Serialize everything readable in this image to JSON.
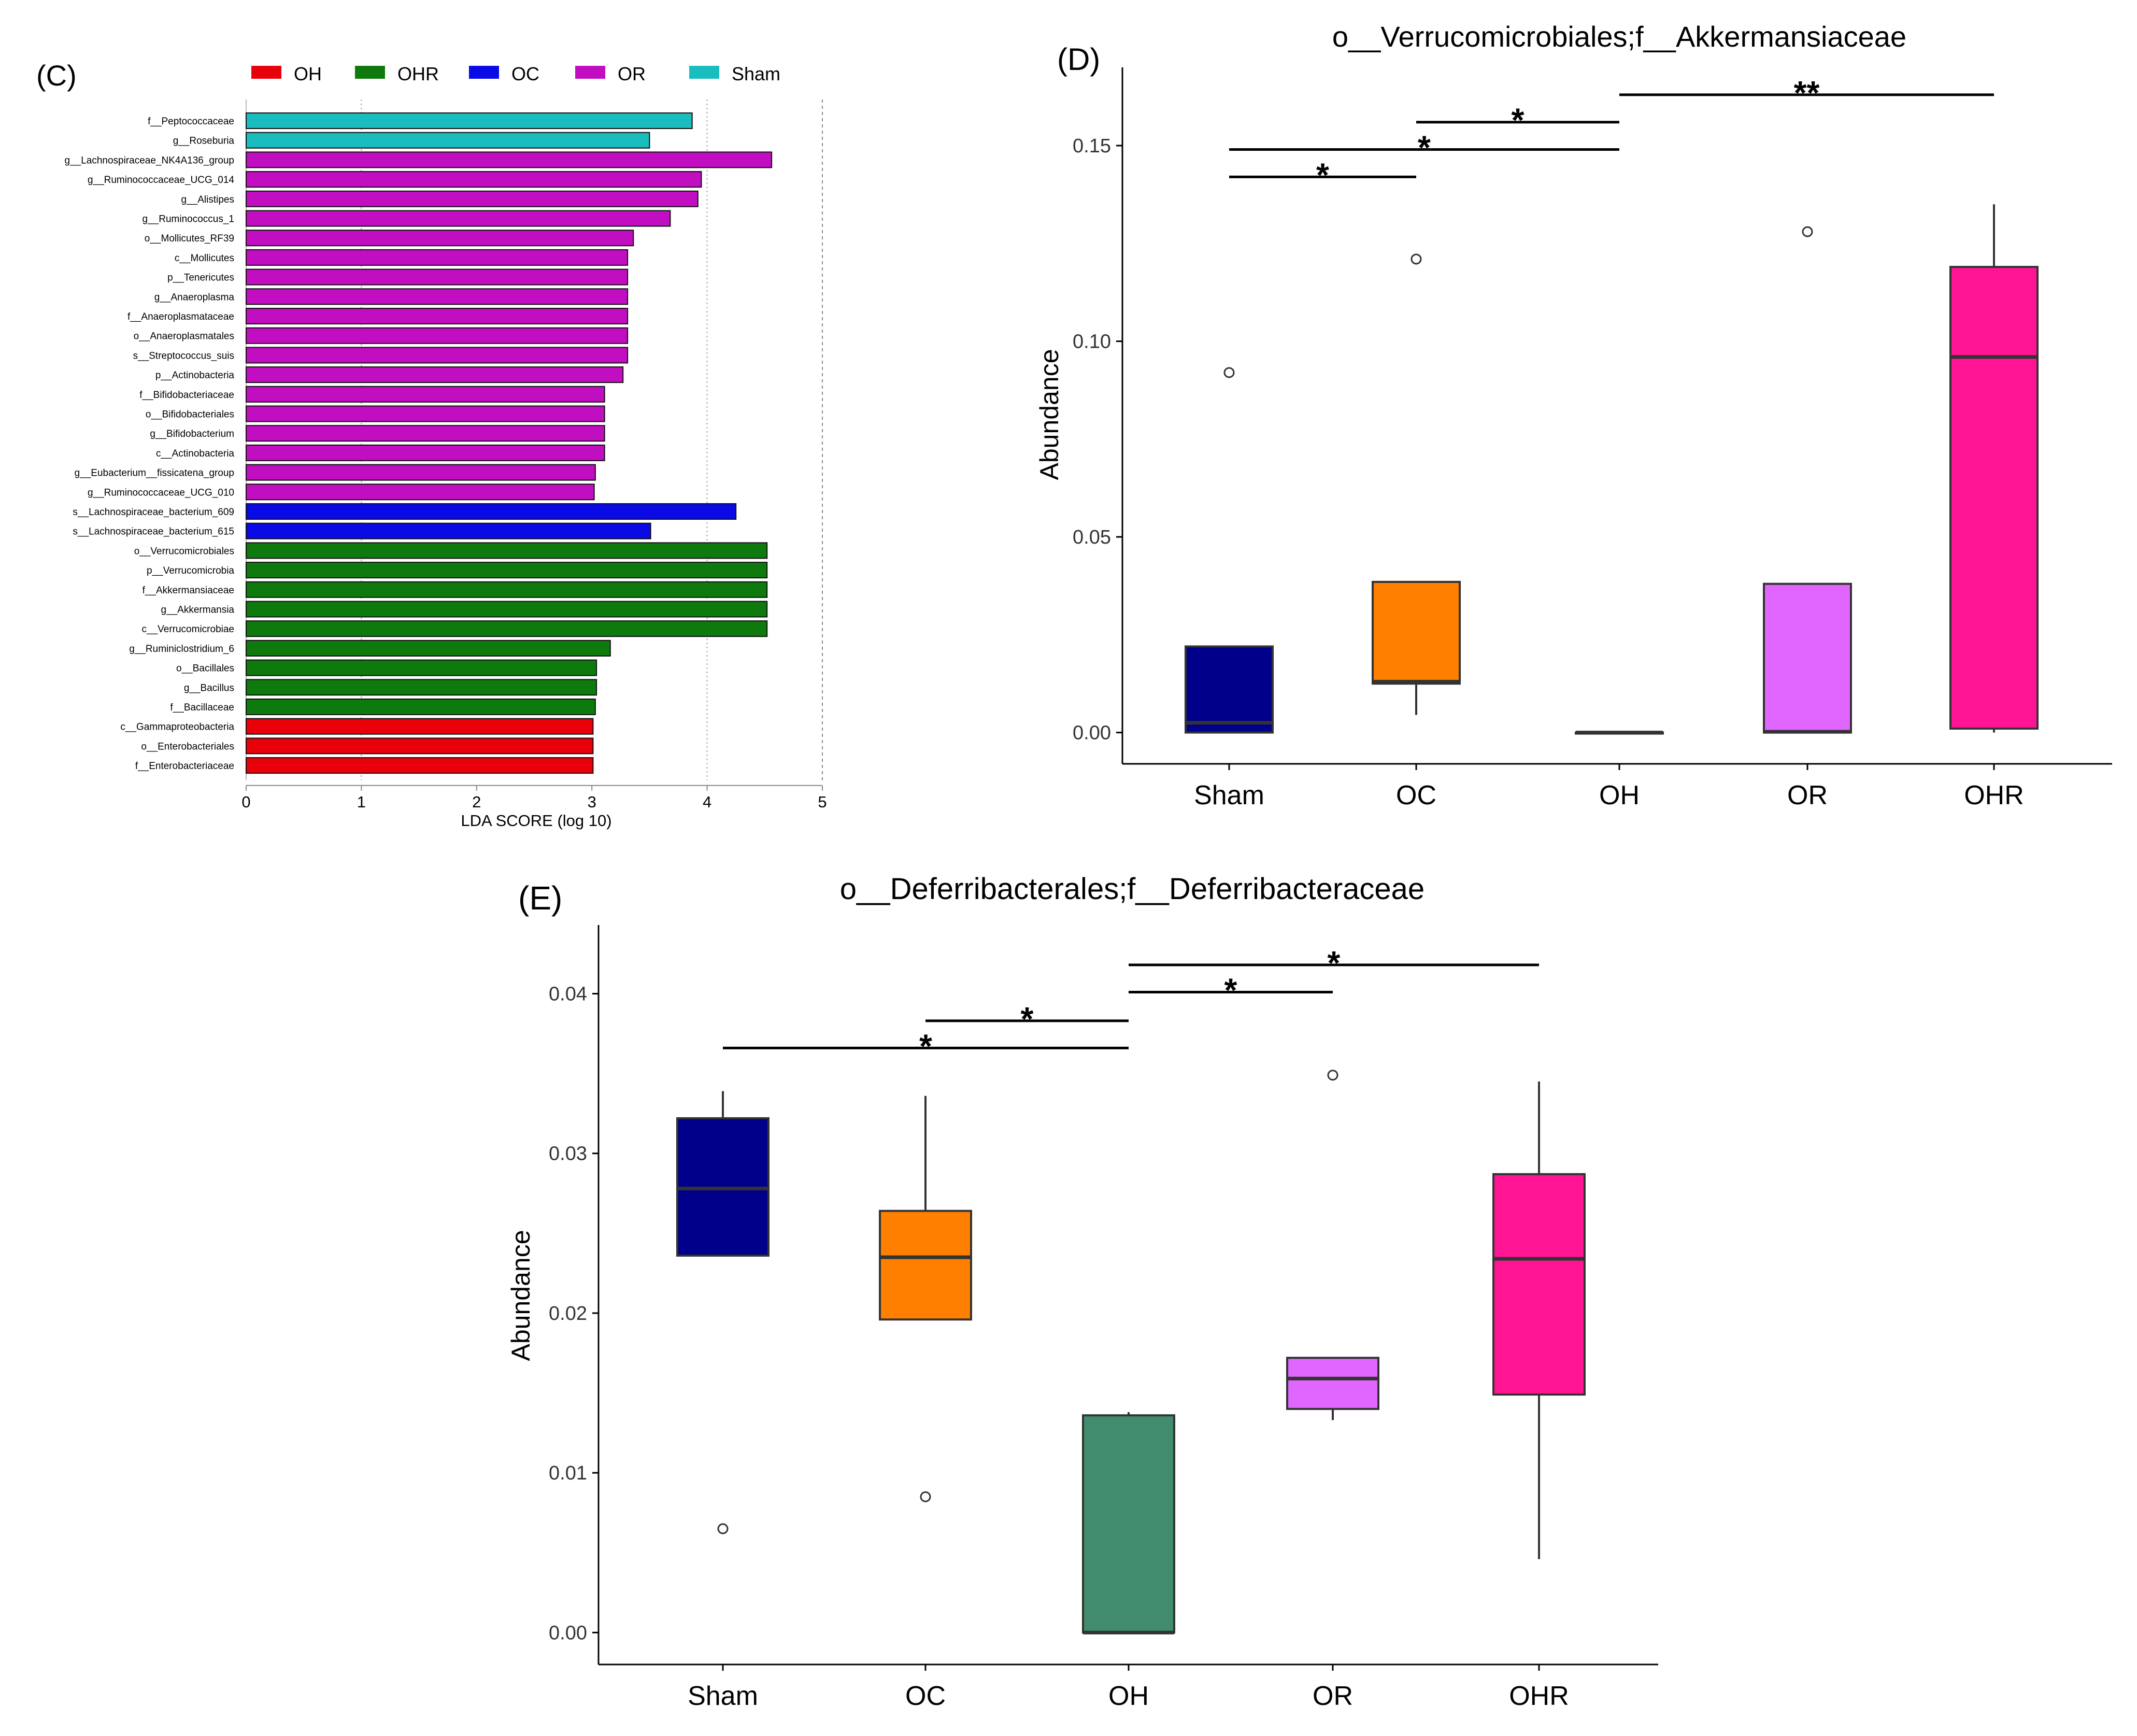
{
  "chart_data": [
    {
      "panel": "(C)",
      "type": "bar",
      "orientation": "horizontal",
      "title": "",
      "xlabel": "LDA SCORE (log 10)",
      "ylabel": "",
      "xlim": [
        0,
        5
      ],
      "xticks": [
        0,
        1,
        2,
        3,
        4,
        5
      ],
      "grid": "dotted vertical lines at 1 and 4; dashed at 5",
      "legend": [
        {
          "name": "OH",
          "color": "#e8000b"
        },
        {
          "name": "OHR",
          "color": "#0e7a0d"
        },
        {
          "name": "OC",
          "color": "#0a0ae6"
        },
        {
          "name": "OR",
          "color": "#c10ec1"
        },
        {
          "name": "Sham",
          "color": "#19bdbd"
        }
      ],
      "bars": [
        {
          "label": "f__Peptococcaceae",
          "value": 3.87,
          "group": "Sham"
        },
        {
          "label": "g__Roseburia",
          "value": 3.5,
          "group": "Sham"
        },
        {
          "label": "g__Lachnospiraceae_NK4A136_group",
          "value": 4.56,
          "group": "OR"
        },
        {
          "label": "g__Ruminococcaceae_UCG_014",
          "value": 3.95,
          "group": "OR"
        },
        {
          "label": "g__Alistipes",
          "value": 3.92,
          "group": "OR"
        },
        {
          "label": "g__Ruminococcus_1",
          "value": 3.68,
          "group": "OR"
        },
        {
          "label": "o__Mollicutes_RF39",
          "value": 3.36,
          "group": "OR"
        },
        {
          "label": "c__Mollicutes",
          "value": 3.31,
          "group": "OR"
        },
        {
          "label": "p__Tenericutes",
          "value": 3.31,
          "group": "OR"
        },
        {
          "label": "g__Anaeroplasma",
          "value": 3.31,
          "group": "OR"
        },
        {
          "label": "f__Anaeroplasmataceae",
          "value": 3.31,
          "group": "OR"
        },
        {
          "label": "o__Anaeroplasmatales",
          "value": 3.31,
          "group": "OR"
        },
        {
          "label": "s__Streptococcus_suis",
          "value": 3.31,
          "group": "OR"
        },
        {
          "label": "p__Actinobacteria",
          "value": 3.27,
          "group": "OR"
        },
        {
          "label": "f__Bifidobacteriaceae",
          "value": 3.11,
          "group": "OR"
        },
        {
          "label": "o__Bifidobacteriales",
          "value": 3.11,
          "group": "OR"
        },
        {
          "label": "g__Bifidobacterium",
          "value": 3.11,
          "group": "OR"
        },
        {
          "label": "c__Actinobacteria",
          "value": 3.11,
          "group": "OR"
        },
        {
          "label": "g__Eubacterium__fissicatena_group",
          "value": 3.03,
          "group": "OR"
        },
        {
          "label": "g__Ruminococcaceae_UCG_010",
          "value": 3.02,
          "group": "OR"
        },
        {
          "label": "s__Lachnospiraceae_bacterium_609",
          "value": 4.25,
          "group": "OC"
        },
        {
          "label": "s__Lachnospiraceae_bacterium_615",
          "value": 3.51,
          "group": "OC"
        },
        {
          "label": "o__Verrucomicrobiales",
          "value": 4.52,
          "group": "OHR"
        },
        {
          "label": "p__Verrucomicrobia",
          "value": 4.52,
          "group": "OHR"
        },
        {
          "label": "f__Akkermansiaceae",
          "value": 4.52,
          "group": "OHR"
        },
        {
          "label": "g__Akkermansia",
          "value": 4.52,
          "group": "OHR"
        },
        {
          "label": "c__Verrucomicrobiae",
          "value": 4.52,
          "group": "OHR"
        },
        {
          "label": "g__Ruminiclostridium_6",
          "value": 3.16,
          "group": "OHR"
        },
        {
          "label": "o__Bacillales",
          "value": 3.04,
          "group": "OHR"
        },
        {
          "label": "g__Bacillus",
          "value": 3.04,
          "group": "OHR"
        },
        {
          "label": "f__Bacillaceae",
          "value": 3.03,
          "group": "OHR"
        },
        {
          "label": "c__Gammaproteobacteria",
          "value": 3.01,
          "group": "OH"
        },
        {
          "label": "o__Enterobacteriales",
          "value": 3.01,
          "group": "OH"
        },
        {
          "label": "f__Enterobacteriaceae",
          "value": 3.01,
          "group": "OH"
        }
      ]
    },
    {
      "panel": "(D)",
      "type": "boxplot",
      "title": "o__Verrucomicrobiales;f__Akkermansiaceae",
      "xlabel": "",
      "ylabel": "Abundance",
      "ylim": [
        -0.008,
        0.17
      ],
      "yticks": [
        0,
        0.05,
        0.1,
        0.15
      ],
      "ytick_labels": [
        "0.00",
        "0.05",
        "0.10",
        "0.15"
      ],
      "categories": [
        "Sham",
        "OC",
        "OH",
        "OR",
        "OHR"
      ],
      "boxes": [
        {
          "name": "Sham",
          "color": "#00008b",
          "min": 0.0,
          "q1": 0.0,
          "median": 0.0025,
          "q3": 0.022,
          "max": 0.022,
          "outliers": [
            0.092
          ]
        },
        {
          "name": "OC",
          "color": "#ff7f00",
          "min": 0.0045,
          "q1": 0.0125,
          "median": 0.013,
          "q3": 0.0385,
          "max": 0.0385,
          "outliers": [
            0.121
          ]
        },
        {
          "name": "OH",
          "color": "#2e8b57",
          "min": 0.0,
          "q1": 0.0,
          "median": 0.0,
          "q3": 0.0,
          "max": 0.0,
          "outliers": []
        },
        {
          "name": "OR",
          "color": "#e066ff",
          "min": 0.0,
          "q1": 0.0,
          "median": 0.0002,
          "q3": 0.038,
          "max": 0.038,
          "outliers": [
            0.128
          ]
        },
        {
          "name": "OHR",
          "color": "#ff1493",
          "min": 0.0,
          "q1": 0.001,
          "median": 0.096,
          "q3": 0.119,
          "max": 0.135,
          "outliers": []
        }
      ],
      "significance": [
        {
          "from": "OH",
          "to": "OHR",
          "label": "**",
          "level": 0.163
        },
        {
          "from": "OC",
          "to": "OH",
          "label": "*",
          "level": 0.156
        },
        {
          "from": "Sham",
          "to": "OH",
          "label": "*",
          "level": 0.149
        },
        {
          "from": "Sham",
          "to": "OC",
          "label": "*",
          "level": 0.142
        }
      ]
    },
    {
      "panel": "(E)",
      "type": "boxplot",
      "title": "o__Deferribacterales;f__Deferribacteraceae",
      "xlabel": "",
      "ylabel": "Abundance",
      "ylim": [
        -0.002,
        0.0443
      ],
      "yticks": [
        0,
        0.01,
        0.02,
        0.03,
        0.04
      ],
      "ytick_labels": [
        "0.00",
        "0.01",
        "0.02",
        "0.03",
        "0.04"
      ],
      "categories": [
        "Sham",
        "OC",
        "OH",
        "OR",
        "OHR"
      ],
      "boxes": [
        {
          "name": "Sham",
          "color": "#00008b",
          "min": 0.0236,
          "q1": 0.0236,
          "median": 0.0278,
          "q3": 0.0322,
          "max": 0.0339,
          "outliers": [
            0.0065
          ]
        },
        {
          "name": "OC",
          "color": "#ff7f00",
          "min": 0.0196,
          "q1": 0.0196,
          "median": 0.0235,
          "q3": 0.0264,
          "max": 0.0336,
          "outliers": [
            0.0085
          ]
        },
        {
          "name": "OH",
          "color": "#408c6c",
          "min": 0.0,
          "q1": 0.0,
          "median": 0.0,
          "q3": 0.0136,
          "max": 0.0138,
          "outliers": []
        },
        {
          "name": "OR",
          "color": "#e066ff",
          "min": 0.0133,
          "q1": 0.014,
          "median": 0.0159,
          "q3": 0.0172,
          "max": 0.0172,
          "outliers": [
            0.0349
          ]
        },
        {
          "name": "OHR",
          "color": "#ff1493",
          "min": 0.0046,
          "q1": 0.0149,
          "median": 0.0234,
          "q3": 0.0287,
          "max": 0.0345,
          "outliers": []
        }
      ],
      "significance": [
        {
          "from": "OH",
          "to": "OHR",
          "label": "*",
          "level": 0.0418
        },
        {
          "from": "OH",
          "to": "OR",
          "label": "*",
          "level": 0.0401
        },
        {
          "from": "OC",
          "to": "OH",
          "label": "*",
          "level": 0.0383
        },
        {
          "from": "Sham",
          "to": "OH",
          "label": "*",
          "level": 0.0366
        }
      ]
    }
  ]
}
